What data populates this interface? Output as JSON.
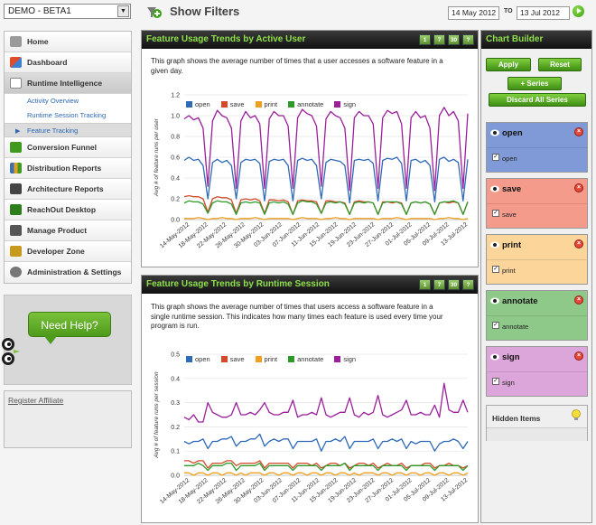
{
  "product": {
    "selected": "DEMO - BETA1"
  },
  "nav": {
    "items": [
      {
        "label": "Home",
        "icon": "home-icon",
        "color": "#888888"
      },
      {
        "label": "Dashboard",
        "icon": "dashboard-icon",
        "color": "#d14b2c"
      },
      {
        "label": "Runtime Intelligence",
        "icon": "chart-line-icon",
        "color": "#6b6b6b"
      },
      {
        "label": "Conversion Funnel",
        "icon": "funnel-icon",
        "color": "#3f9a1f"
      },
      {
        "label": "Distribution Reports",
        "icon": "bar-chart-icon",
        "color": "#3f6fb0"
      },
      {
        "label": "Architecture Reports",
        "icon": "architecture-icon",
        "color": "#444444"
      },
      {
        "label": "ReachOut Desktop Messaging",
        "icon": "reachout-icon",
        "color": "#2e7d1c"
      },
      {
        "label": "Manage Product",
        "icon": "manage-product-icon",
        "color": "#555555"
      },
      {
        "label": "Developer Zone",
        "icon": "developer-zone-icon",
        "color": "#c79a1e"
      },
      {
        "label": "Administration & Settings",
        "icon": "settings-icon",
        "color": "#666666"
      }
    ],
    "subitems": [
      {
        "label": "Activity Overview"
      },
      {
        "label": "Runtime Session Tracking"
      },
      {
        "label": "Feature Tracking"
      }
    ]
  },
  "help": {
    "label": "Need Help?"
  },
  "affiliate": {
    "label": "Register Affiliate"
  },
  "filters": {
    "title": "Show Filters",
    "from": "14 May 2012",
    "to_label": "TO",
    "to": "13 Jul 2012"
  },
  "range_buttons": [
    "1",
    "7",
    "30",
    "?"
  ],
  "panels": {
    "user": {
      "title": "Feature Usage Trends by Active User",
      "description_lines": [
        "This graph shows the average number of times that a user accesses a software feature in a",
        "given day."
      ],
      "ylabel": "Avg # of feature runs per user"
    },
    "session": {
      "title": "Feature Usage Trends by Runtime Session",
      "description_lines": [
        "This graph shows the average number of times that users access a software feature in a",
        "single runtime session. This indicates how many times each feature is used every time your",
        "program is run."
      ],
      "ylabel": "Avg # of feature runs per session"
    }
  },
  "chart_builder": {
    "title": "Chart Builder",
    "apply": "Apply",
    "reset": "Reset",
    "add_series": "+ Series",
    "discard": "Discard All Series",
    "hidden_items": "Hidden Items",
    "series": [
      {
        "name": "open",
        "color": "#7f9ad6",
        "line": "#2f6ab8"
      },
      {
        "name": "save",
        "color": "#f49b8c",
        "line": "#d34a2a"
      },
      {
        "name": "print",
        "color": "#fbd59a",
        "line": "#f0a020"
      },
      {
        "name": "annotate",
        "color": "#8fc98a",
        "line": "#2e9a2a"
      },
      {
        "name": "sign",
        "color": "#dda6da",
        "line": "#9b1f9b"
      }
    ]
  },
  "chart_data": [
    {
      "type": "line",
      "title": "Feature Usage Trends by Active User",
      "ylabel": "Avg # of feature runs per user",
      "ylim": [
        0,
        1.2
      ],
      "yticks": [
        "0.0",
        "0.2",
        "0.4",
        "0.6",
        "0.8",
        "1.0",
        "1.2"
      ],
      "xtick_labels": [
        "14-May-2012",
        "18-May-2012",
        "22-May-2012",
        "26-May-2012",
        "30-May-2012",
        "03-Jun-2012",
        "07-Jun-2012",
        "11-Jun-2012",
        "15-Jun-2012",
        "19-Jun-2012",
        "23-Jun-2012",
        "27-Jun-2012",
        "01-Jul-2012",
        "05-Jul-2012",
        "09-Jul-2012",
        "13-Jul-2012"
      ],
      "series": [
        {
          "name": "open",
          "color": "#2f6ab8",
          "values": [
            0.57,
            0.6,
            0.57,
            0.58,
            0.52,
            0.2,
            0.55,
            0.58,
            0.55,
            0.57,
            0.52,
            0.2,
            0.55,
            0.58,
            0.57,
            0.58,
            0.54,
            0.18,
            0.56,
            0.58,
            0.57,
            0.58,
            0.52,
            0.18,
            0.57,
            0.59,
            0.57,
            0.58,
            0.52,
            0.2,
            0.55,
            0.58,
            0.57,
            0.56,
            0.52,
            0.16,
            0.57,
            0.58,
            0.57,
            0.58,
            0.54,
            0.18,
            0.57,
            0.59,
            0.58,
            0.6,
            0.54,
            0.18,
            0.57,
            0.58,
            0.55,
            0.57,
            0.52,
            0.17,
            0.58,
            0.6,
            0.56,
            0.58,
            0.55,
            0.18,
            0.58
          ]
        },
        {
          "name": "save",
          "color": "#d34a2a",
          "values": [
            0.22,
            0.23,
            0.22,
            0.22,
            0.2,
            0.07,
            0.2,
            0.22,
            0.21,
            0.21,
            0.19,
            0.06,
            0.19,
            0.2,
            0.19,
            0.2,
            0.18,
            0.06,
            0.19,
            0.19,
            0.18,
            0.19,
            0.17,
            0.05,
            0.18,
            0.19,
            0.18,
            0.18,
            0.17,
            0.06,
            0.18,
            0.18,
            0.17,
            0.17,
            0.16,
            0.05,
            0.17,
            0.18,
            0.17,
            0.17,
            0.16,
            0.05,
            0.17,
            0.17,
            0.16,
            0.17,
            0.16,
            0.05,
            0.16,
            0.17,
            0.16,
            0.17,
            0.15,
            0.05,
            0.16,
            0.17,
            0.16,
            0.17,
            0.16,
            0.05,
            0.17
          ]
        },
        {
          "name": "print",
          "color": "#f0a020",
          "values": [
            0.01,
            0.01,
            0.01,
            0.02,
            0.01,
            0.0,
            0.01,
            0.01,
            0.02,
            0.01,
            0.01,
            0.0,
            0.01,
            0.01,
            0.01,
            0.02,
            0.01,
            0.0,
            0.01,
            0.01,
            0.01,
            0.01,
            0.01,
            0.0,
            0.01,
            0.02,
            0.01,
            0.01,
            0.01,
            0.0,
            0.01,
            0.01,
            0.02,
            0.01,
            0.01,
            0.0,
            0.01,
            0.01,
            0.01,
            0.01,
            0.01,
            0.0,
            0.01,
            0.01,
            0.01,
            0.02,
            0.01,
            0.0,
            0.01,
            0.01,
            0.01,
            0.01,
            0.01,
            0.0,
            0.01,
            0.01,
            0.02,
            0.01,
            0.01,
            0.0,
            0.01
          ]
        },
        {
          "name": "annotate",
          "color": "#2e9a2a",
          "values": [
            0.16,
            0.18,
            0.17,
            0.17,
            0.15,
            0.06,
            0.16,
            0.18,
            0.17,
            0.17,
            0.15,
            0.05,
            0.16,
            0.17,
            0.16,
            0.17,
            0.16,
            0.05,
            0.16,
            0.17,
            0.16,
            0.17,
            0.15,
            0.05,
            0.16,
            0.18,
            0.17,
            0.17,
            0.15,
            0.06,
            0.16,
            0.17,
            0.16,
            0.17,
            0.15,
            0.05,
            0.16,
            0.17,
            0.16,
            0.17,
            0.16,
            0.05,
            0.16,
            0.17,
            0.17,
            0.17,
            0.15,
            0.05,
            0.16,
            0.17,
            0.16,
            0.17,
            0.15,
            0.05,
            0.16,
            0.17,
            0.17,
            0.18,
            0.16,
            0.05,
            0.17
          ]
        },
        {
          "name": "sign",
          "color": "#9b1f9b",
          "values": [
            0.97,
            1.0,
            0.96,
            0.98,
            0.88,
            0.32,
            0.95,
            1.05,
            1.0,
            0.98,
            0.88,
            0.3,
            0.95,
            1.04,
            0.98,
            1.0,
            0.92,
            0.3,
            0.97,
            1.04,
            1.0,
            1.0,
            0.9,
            0.3,
            0.98,
            1.06,
            1.02,
            1.0,
            0.9,
            0.32,
            0.97,
            1.04,
            1.0,
            0.98,
            0.88,
            0.28,
            0.98,
            1.04,
            1.0,
            1.0,
            0.92,
            0.3,
            0.98,
            1.05,
            1.02,
            1.04,
            0.92,
            0.3,
            0.98,
            1.04,
            0.98,
            1.0,
            0.88,
            0.28,
            1.0,
            1.08,
            1.0,
            1.04,
            0.95,
            0.3,
            1.02
          ]
        }
      ]
    },
    {
      "type": "line",
      "title": "Feature Usage Trends by Runtime Session",
      "ylabel": "Avg # of feature runs per session",
      "ylim": [
        0,
        0.5
      ],
      "yticks": [
        "0.0",
        "0.1",
        "0.2",
        "0.3",
        "0.4",
        "0.5"
      ],
      "xtick_labels": [
        "14-May-2012",
        "18-May-2012",
        "22-May-2012",
        "26-May-2012",
        "30-May-2012",
        "03-Jun-2012",
        "07-Jun-2012",
        "11-Jun-2012",
        "15-Jun-2012",
        "19-Jun-2012",
        "23-Jun-2012",
        "27-Jun-2012",
        "01-Jul-2012",
        "05-Jul-2012",
        "09-Jul-2012",
        "13-Jul-2012"
      ],
      "series": [
        {
          "name": "open",
          "color": "#2f6ab8",
          "values": [
            0.14,
            0.13,
            0.14,
            0.14,
            0.15,
            0.11,
            0.14,
            0.14,
            0.15,
            0.15,
            0.16,
            0.12,
            0.14,
            0.14,
            0.15,
            0.15,
            0.17,
            0.12,
            0.14,
            0.15,
            0.14,
            0.15,
            0.15,
            0.11,
            0.14,
            0.14,
            0.14,
            0.14,
            0.15,
            0.1,
            0.14,
            0.14,
            0.15,
            0.14,
            0.16,
            0.11,
            0.14,
            0.14,
            0.14,
            0.14,
            0.15,
            0.11,
            0.14,
            0.14,
            0.15,
            0.14,
            0.15,
            0.11,
            0.14,
            0.13,
            0.14,
            0.14,
            0.14,
            0.1,
            0.13,
            0.14,
            0.14,
            0.15,
            0.14,
            0.11,
            0.14
          ]
        },
        {
          "name": "save",
          "color": "#d34a2a",
          "values": [
            0.06,
            0.06,
            0.05,
            0.06,
            0.06,
            0.03,
            0.05,
            0.05,
            0.05,
            0.06,
            0.06,
            0.04,
            0.05,
            0.05,
            0.05,
            0.05,
            0.06,
            0.03,
            0.05,
            0.05,
            0.05,
            0.05,
            0.05,
            0.03,
            0.05,
            0.05,
            0.05,
            0.04,
            0.05,
            0.03,
            0.04,
            0.05,
            0.05,
            0.04,
            0.05,
            0.03,
            0.04,
            0.05,
            0.05,
            0.04,
            0.05,
            0.03,
            0.04,
            0.05,
            0.04,
            0.04,
            0.05,
            0.03,
            0.04,
            0.04,
            0.04,
            0.05,
            0.05,
            0.03,
            0.04,
            0.04,
            0.05,
            0.04,
            0.04,
            0.03,
            0.04
          ]
        },
        {
          "name": "print",
          "color": "#f0a020",
          "values": [
            0.01,
            0.01,
            0.0,
            0.01,
            0.01,
            0.0,
            0.01,
            0.01,
            0.0,
            0.01,
            0.01,
            0.0,
            0.01,
            0.0,
            0.01,
            0.01,
            0.01,
            0.0,
            0.01,
            0.01,
            0.0,
            0.01,
            0.01,
            0.0,
            0.01,
            0.01,
            0.0,
            0.01,
            0.01,
            0.0,
            0.01,
            0.01,
            0.0,
            0.01,
            0.01,
            0.0,
            0.01,
            0.0,
            0.01,
            0.01,
            0.01,
            0.0,
            0.01,
            0.01,
            0.0,
            0.01,
            0.01,
            0.0,
            0.01,
            0.01,
            0.0,
            0.01,
            0.01,
            0.0,
            0.01,
            0.01,
            0.0,
            0.01,
            0.01,
            0.0,
            0.01
          ]
        },
        {
          "name": "annotate",
          "color": "#2e9a2a",
          "values": [
            0.04,
            0.04,
            0.04,
            0.05,
            0.04,
            0.02,
            0.04,
            0.04,
            0.04,
            0.05,
            0.05,
            0.02,
            0.04,
            0.04,
            0.04,
            0.04,
            0.05,
            0.02,
            0.04,
            0.04,
            0.04,
            0.04,
            0.04,
            0.02,
            0.04,
            0.04,
            0.04,
            0.04,
            0.04,
            0.02,
            0.04,
            0.04,
            0.04,
            0.04,
            0.05,
            0.02,
            0.04,
            0.04,
            0.04,
            0.04,
            0.04,
            0.02,
            0.04,
            0.04,
            0.04,
            0.04,
            0.04,
            0.02,
            0.04,
            0.04,
            0.04,
            0.04,
            0.04,
            0.02,
            0.04,
            0.04,
            0.04,
            0.04,
            0.04,
            0.02,
            0.04
          ]
        },
        {
          "name": "sign",
          "color": "#9b1f9b",
          "values": [
            0.24,
            0.23,
            0.25,
            0.22,
            0.22,
            0.3,
            0.26,
            0.25,
            0.24,
            0.24,
            0.25,
            0.3,
            0.25,
            0.25,
            0.26,
            0.25,
            0.27,
            0.3,
            0.26,
            0.25,
            0.25,
            0.26,
            0.26,
            0.31,
            0.24,
            0.25,
            0.25,
            0.26,
            0.25,
            0.32,
            0.25,
            0.24,
            0.25,
            0.26,
            0.26,
            0.32,
            0.25,
            0.24,
            0.26,
            0.25,
            0.26,
            0.33,
            0.25,
            0.24,
            0.25,
            0.26,
            0.27,
            0.31,
            0.25,
            0.25,
            0.26,
            0.25,
            0.25,
            0.29,
            0.24,
            0.38,
            0.27,
            0.26,
            0.26,
            0.31,
            0.26
          ]
        }
      ]
    }
  ]
}
